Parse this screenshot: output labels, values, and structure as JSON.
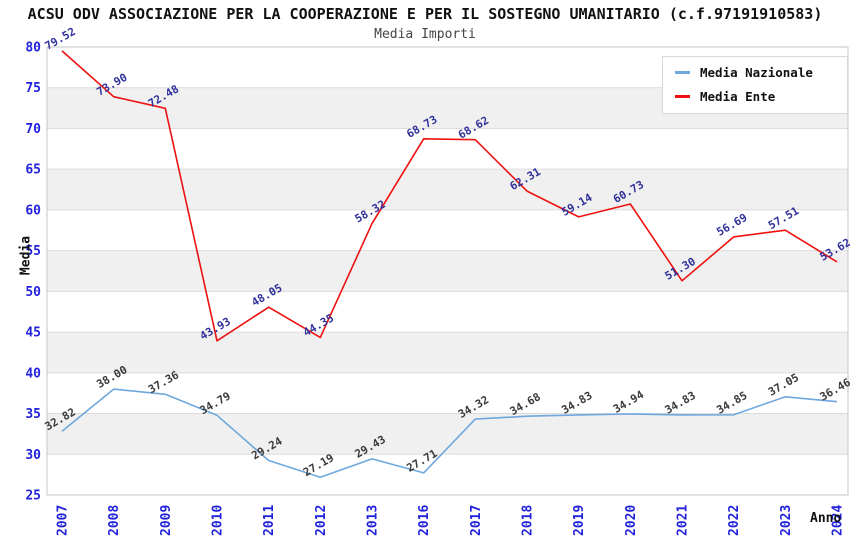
{
  "header": {
    "title": "ACSU ODV ASSOCIAZIONE PER LA COOPERAZIONE E PER IL SOSTEGNO UMANITARIO (c.f.97191910583)",
    "subtitle": "Media Importi"
  },
  "chart_data": {
    "type": "line",
    "x": [
      "2007",
      "2008",
      "2009",
      "2010",
      "2011",
      "2012",
      "2013",
      "2016",
      "2017",
      "2018",
      "2019",
      "2020",
      "2021",
      "2022",
      "2023",
      "2024"
    ],
    "series": [
      {
        "name": "Media Nazionale",
        "color": "#6FA8DC",
        "label_color": "#3A3A3A",
        "values": [
          32.82,
          38.0,
          37.36,
          34.79,
          29.24,
          27.19,
          29.43,
          27.71,
          34.32,
          34.68,
          34.83,
          34.94,
          34.83,
          34.85,
          37.05,
          36.46
        ]
      },
      {
        "name": "Media Ente",
        "color": "#EE1111",
        "label_color": "#31319C",
        "values": [
          79.52,
          73.9,
          72.48,
          43.93,
          48.05,
          44.35,
          58.32,
          68.73,
          68.62,
          62.31,
          59.14,
          60.73,
          51.3,
          56.69,
          57.51,
          53.62
        ]
      }
    ],
    "xlabel": "Anno",
    "ylabel": "Media",
    "ylim": [
      25,
      80
    ],
    "ytick_step": 5,
    "grid": true,
    "legend_position": "top-right",
    "band_colors": [
      "#FFFFFF",
      "#F0F0F0"
    ],
    "gridline_color": "#DCDCDC",
    "border_color": "#C6C6C6",
    "tick_color": "#2222DD",
    "label_decimals": 2
  }
}
